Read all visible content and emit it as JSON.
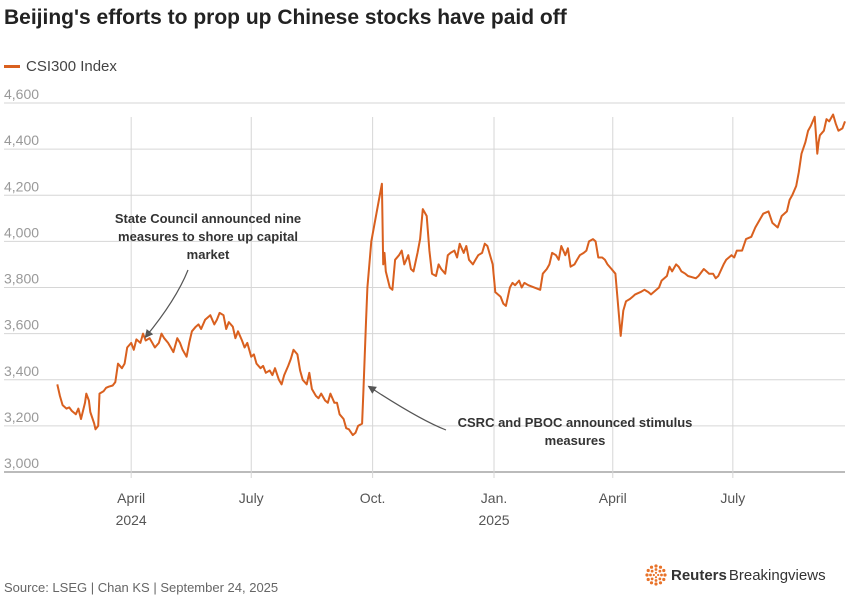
{
  "title": "Beijing's efforts to prop up Chinese stocks have paid off",
  "source": "Source: LSEG | Chan KS | September 24, 2025",
  "brand": {
    "strong": "Reuters",
    "light": "Breakingviews"
  },
  "colors": {
    "line": "#d9601f",
    "grid": "#d6d6d6",
    "axis": "#777777",
    "annotation": "#333333",
    "brand": "#e8732a"
  },
  "chart_data": {
    "type": "line",
    "title": "Beijing's efforts to prop up Chinese stocks have paid off",
    "ylim": [
      3000,
      4600
    ],
    "xlim": [
      "2024-02-01",
      "2025-09-24"
    ],
    "y_ticks": [
      "3,000",
      "3,200",
      "3,400",
      "3,600",
      "3,800",
      "4,000",
      "4,200",
      "4,400",
      "4,600"
    ],
    "y_tick_values": [
      3000,
      3200,
      3400,
      3600,
      3800,
      4000,
      4200,
      4400,
      4600
    ],
    "x_ticks": [
      {
        "date": "2024-04-01",
        "label": "April",
        "sublabel": "2024"
      },
      {
        "date": "2024-07-01",
        "label": "July",
        "sublabel": ""
      },
      {
        "date": "2024-10-01",
        "label": "Oct.",
        "sublabel": ""
      },
      {
        "date": "2025-01-01",
        "label": "Jan.",
        "sublabel": "2025"
      },
      {
        "date": "2025-04-01",
        "label": "April",
        "sublabel": ""
      },
      {
        "date": "2025-07-01",
        "label": "July",
        "sublabel": ""
      }
    ],
    "grid": true,
    "legend": "top-left",
    "series": [
      {
        "name": "CSI300 Index",
        "points": [
          [
            "2024-02-05",
            3380
          ],
          [
            "2024-02-07",
            3330
          ],
          [
            "2024-02-09",
            3290
          ],
          [
            "2024-02-12",
            3275
          ],
          [
            "2024-02-14",
            3280
          ],
          [
            "2024-02-16",
            3265
          ],
          [
            "2024-02-19",
            3250
          ],
          [
            "2024-02-21",
            3275
          ],
          [
            "2024-02-23",
            3230
          ],
          [
            "2024-02-26",
            3300
          ],
          [
            "2024-02-27",
            3340
          ],
          [
            "2024-02-29",
            3310
          ],
          [
            "2024-03-01",
            3260
          ],
          [
            "2024-03-04",
            3210
          ],
          [
            "2024-03-05",
            3185
          ],
          [
            "2024-03-07",
            3200
          ],
          [
            "2024-03-08",
            3340
          ],
          [
            "2024-03-11",
            3350
          ],
          [
            "2024-03-13",
            3365
          ],
          [
            "2024-03-15",
            3370
          ],
          [
            "2024-03-18",
            3375
          ],
          [
            "2024-03-20",
            3390
          ],
          [
            "2024-03-22",
            3470
          ],
          [
            "2024-03-25",
            3450
          ],
          [
            "2024-03-27",
            3470
          ],
          [
            "2024-03-29",
            3540
          ],
          [
            "2024-04-01",
            3560
          ],
          [
            "2024-04-03",
            3530
          ],
          [
            "2024-04-05",
            3575
          ],
          [
            "2024-04-08",
            3560
          ],
          [
            "2024-04-10",
            3600
          ],
          [
            "2024-04-12",
            3570
          ],
          [
            "2024-04-15",
            3580
          ],
          [
            "2024-04-17",
            3560
          ],
          [
            "2024-04-19",
            3540
          ],
          [
            "2024-04-22",
            3560
          ],
          [
            "2024-04-24",
            3600
          ],
          [
            "2024-04-26",
            3580
          ],
          [
            "2024-04-29",
            3560
          ],
          [
            "2024-05-01",
            3540
          ],
          [
            "2024-05-03",
            3520
          ],
          [
            "2024-05-06",
            3580
          ],
          [
            "2024-05-08",
            3560
          ],
          [
            "2024-05-10",
            3530
          ],
          [
            "2024-05-13",
            3500
          ],
          [
            "2024-05-15",
            3560
          ],
          [
            "2024-05-17",
            3610
          ],
          [
            "2024-05-20",
            3630
          ],
          [
            "2024-05-22",
            3640
          ],
          [
            "2024-05-24",
            3620
          ],
          [
            "2024-05-27",
            3660
          ],
          [
            "2024-05-29",
            3670
          ],
          [
            "2024-05-31",
            3680
          ],
          [
            "2024-06-03",
            3640
          ],
          [
            "2024-06-05",
            3660
          ],
          [
            "2024-06-07",
            3690
          ],
          [
            "2024-06-10",
            3680
          ],
          [
            "2024-06-12",
            3620
          ],
          [
            "2024-06-14",
            3650
          ],
          [
            "2024-06-17",
            3630
          ],
          [
            "2024-06-19",
            3580
          ],
          [
            "2024-06-21",
            3610
          ],
          [
            "2024-06-24",
            3570
          ],
          [
            "2024-06-26",
            3540
          ],
          [
            "2024-06-28",
            3560
          ],
          [
            "2024-07-01",
            3500
          ],
          [
            "2024-07-03",
            3510
          ],
          [
            "2024-07-05",
            3470
          ],
          [
            "2024-07-08",
            3450
          ],
          [
            "2024-07-10",
            3460
          ],
          [
            "2024-07-12",
            3430
          ],
          [
            "2024-07-15",
            3440
          ],
          [
            "2024-07-17",
            3420
          ],
          [
            "2024-07-19",
            3450
          ],
          [
            "2024-07-22",
            3400
          ],
          [
            "2024-07-24",
            3380
          ],
          [
            "2024-07-26",
            3420
          ],
          [
            "2024-07-29",
            3460
          ],
          [
            "2024-07-31",
            3490
          ],
          [
            "2024-08-02",
            3530
          ],
          [
            "2024-08-05",
            3510
          ],
          [
            "2024-08-07",
            3440
          ],
          [
            "2024-08-09",
            3400
          ],
          [
            "2024-08-12",
            3380
          ],
          [
            "2024-08-14",
            3430
          ],
          [
            "2024-08-16",
            3360
          ],
          [
            "2024-08-19",
            3330
          ],
          [
            "2024-08-21",
            3320
          ],
          [
            "2024-08-23",
            3340
          ],
          [
            "2024-08-26",
            3310
          ],
          [
            "2024-08-28",
            3300
          ],
          [
            "2024-08-30",
            3340
          ],
          [
            "2024-09-02",
            3300
          ],
          [
            "2024-09-04",
            3300
          ],
          [
            "2024-09-06",
            3250
          ],
          [
            "2024-09-09",
            3230
          ],
          [
            "2024-09-11",
            3190
          ],
          [
            "2024-09-13",
            3185
          ],
          [
            "2024-09-16",
            3160
          ],
          [
            "2024-09-18",
            3170
          ],
          [
            "2024-09-20",
            3200
          ],
          [
            "2024-09-23",
            3210
          ],
          [
            "2024-09-24",
            3350
          ],
          [
            "2024-09-25",
            3500
          ],
          [
            "2024-09-26",
            3650
          ],
          [
            "2024-09-27",
            3800
          ],
          [
            "2024-09-30",
            4000
          ],
          [
            "2024-10-08",
            4250
          ],
          [
            "2024-10-09",
            3900
          ],
          [
            "2024-10-10",
            3950
          ],
          [
            "2024-10-11",
            3870
          ],
          [
            "2024-10-14",
            3800
          ],
          [
            "2024-10-16",
            3790
          ],
          [
            "2024-10-18",
            3920
          ],
          [
            "2024-10-21",
            3940
          ],
          [
            "2024-10-23",
            3960
          ],
          [
            "2024-10-25",
            3900
          ],
          [
            "2024-10-28",
            3940
          ],
          [
            "2024-10-30",
            3880
          ],
          [
            "2024-11-01",
            3870
          ],
          [
            "2024-11-04",
            3950
          ],
          [
            "2024-11-06",
            4010
          ],
          [
            "2024-11-08",
            4140
          ],
          [
            "2024-11-11",
            4110
          ],
          [
            "2024-11-13",
            3960
          ],
          [
            "2024-11-15",
            3860
          ],
          [
            "2024-11-18",
            3850
          ],
          [
            "2024-11-20",
            3900
          ],
          [
            "2024-11-22",
            3880
          ],
          [
            "2024-11-25",
            3860
          ],
          [
            "2024-11-27",
            3940
          ],
          [
            "2024-11-29",
            3950
          ],
          [
            "2024-12-02",
            3960
          ],
          [
            "2024-12-04",
            3930
          ],
          [
            "2024-12-06",
            3990
          ],
          [
            "2024-12-09",
            3950
          ],
          [
            "2024-12-11",
            3980
          ],
          [
            "2024-12-13",
            3920
          ],
          [
            "2024-12-16",
            3900
          ],
          [
            "2024-12-18",
            3920
          ],
          [
            "2024-12-20",
            3940
          ],
          [
            "2024-12-23",
            3950
          ],
          [
            "2024-12-25",
            3990
          ],
          [
            "2024-12-27",
            3980
          ],
          [
            "2024-12-31",
            3900
          ],
          [
            "2025-01-02",
            3780
          ],
          [
            "2025-01-06",
            3760
          ],
          [
            "2025-01-08",
            3730
          ],
          [
            "2025-01-10",
            3720
          ],
          [
            "2025-01-13",
            3800
          ],
          [
            "2025-01-15",
            3820
          ],
          [
            "2025-01-17",
            3810
          ],
          [
            "2025-01-20",
            3830
          ],
          [
            "2025-01-22",
            3800
          ],
          [
            "2025-01-24",
            3820
          ],
          [
            "2025-01-27",
            3810
          ],
          [
            "2025-02-05",
            3790
          ],
          [
            "2025-02-07",
            3860
          ],
          [
            "2025-02-10",
            3880
          ],
          [
            "2025-02-12",
            3900
          ],
          [
            "2025-02-14",
            3950
          ],
          [
            "2025-02-17",
            3940
          ],
          [
            "2025-02-19",
            3920
          ],
          [
            "2025-02-21",
            3980
          ],
          [
            "2025-02-24",
            3940
          ],
          [
            "2025-02-26",
            3970
          ],
          [
            "2025-02-28",
            3890
          ],
          [
            "2025-03-03",
            3900
          ],
          [
            "2025-03-05",
            3920
          ],
          [
            "2025-03-07",
            3940
          ],
          [
            "2025-03-10",
            3950
          ],
          [
            "2025-03-12",
            3960
          ],
          [
            "2025-03-14",
            4000
          ],
          [
            "2025-03-17",
            4010
          ],
          [
            "2025-03-19",
            4000
          ],
          [
            "2025-03-21",
            3930
          ],
          [
            "2025-03-24",
            3930
          ],
          [
            "2025-03-26",
            3920
          ],
          [
            "2025-03-28",
            3900
          ],
          [
            "2025-03-31",
            3880
          ],
          [
            "2025-04-03",
            3860
          ],
          [
            "2025-04-07",
            3590
          ],
          [
            "2025-04-09",
            3700
          ],
          [
            "2025-04-11",
            3740
          ],
          [
            "2025-04-14",
            3750
          ],
          [
            "2025-04-16",
            3760
          ],
          [
            "2025-04-18",
            3770
          ],
          [
            "2025-04-22",
            3780
          ],
          [
            "2025-04-25",
            3790
          ],
          [
            "2025-04-28",
            3780
          ],
          [
            "2025-04-30",
            3770
          ],
          [
            "2025-05-06",
            3800
          ],
          [
            "2025-05-08",
            3830
          ],
          [
            "2025-05-12",
            3850
          ],
          [
            "2025-05-14",
            3890
          ],
          [
            "2025-05-16",
            3870
          ],
          [
            "2025-05-19",
            3900
          ],
          [
            "2025-05-21",
            3890
          ],
          [
            "2025-05-23",
            3870
          ],
          [
            "2025-05-26",
            3860
          ],
          [
            "2025-05-28",
            3850
          ],
          [
            "2025-06-03",
            3840
          ],
          [
            "2025-06-05",
            3850
          ],
          [
            "2025-06-09",
            3880
          ],
          [
            "2025-06-11",
            3870
          ],
          [
            "2025-06-13",
            3860
          ],
          [
            "2025-06-16",
            3860
          ],
          [
            "2025-06-18",
            3840
          ],
          [
            "2025-06-20",
            3850
          ],
          [
            "2025-06-24",
            3900
          ],
          [
            "2025-06-26",
            3920
          ],
          [
            "2025-06-30",
            3940
          ],
          [
            "2025-07-02",
            3930
          ],
          [
            "2025-07-04",
            3960
          ],
          [
            "2025-07-08",
            3960
          ],
          [
            "2025-07-11",
            4010
          ],
          [
            "2025-07-15",
            4020
          ],
          [
            "2025-07-18",
            4060
          ],
          [
            "2025-07-22",
            4100
          ],
          [
            "2025-07-24",
            4120
          ],
          [
            "2025-07-28",
            4130
          ],
          [
            "2025-07-31",
            4080
          ],
          [
            "2025-08-04",
            4060
          ],
          [
            "2025-08-07",
            4110
          ],
          [
            "2025-08-11",
            4130
          ],
          [
            "2025-08-13",
            4180
          ],
          [
            "2025-08-15",
            4200
          ],
          [
            "2025-08-18",
            4240
          ],
          [
            "2025-08-20",
            4300
          ],
          [
            "2025-08-22",
            4380
          ],
          [
            "2025-08-25",
            4430
          ],
          [
            "2025-08-27",
            4480
          ],
          [
            "2025-08-29",
            4500
          ],
          [
            "2025-09-01",
            4540
          ],
          [
            "2025-09-02",
            4460
          ],
          [
            "2025-09-03",
            4380
          ],
          [
            "2025-09-04",
            4430
          ],
          [
            "2025-09-05",
            4460
          ],
          [
            "2025-09-08",
            4480
          ],
          [
            "2025-09-10",
            4530
          ],
          [
            "2025-09-12",
            4520
          ],
          [
            "2025-09-15",
            4550
          ],
          [
            "2025-09-17",
            4510
          ],
          [
            "2025-09-19",
            4480
          ],
          [
            "2025-09-22",
            4490
          ],
          [
            "2025-09-24",
            4520
          ]
        ]
      }
    ],
    "annotations": [
      {
        "text": "State Council announced nine measures to shore up capital market",
        "lines": [
          "State Council announced nine",
          "measures to shore up capital",
          "market"
        ],
        "target": [
          "2024-04-12",
          3560
        ]
      },
      {
        "text": "CSRC and PBOC announced stimulus measures",
        "lines": [
          "CSRC and PBOC announced stimulus",
          "measures"
        ],
        "target": [
          "2024-09-26",
          3370
        ]
      }
    ]
  }
}
